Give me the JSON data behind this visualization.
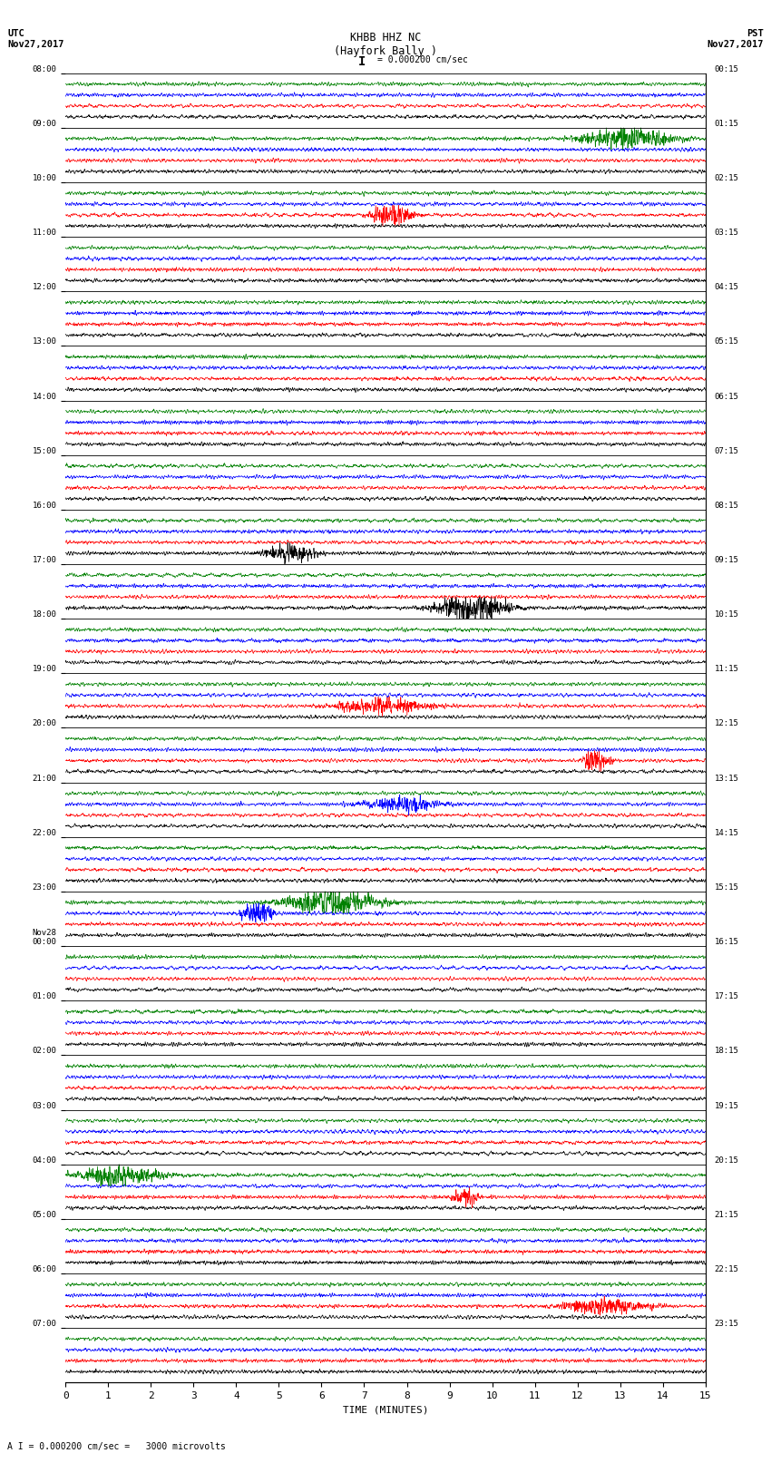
{
  "title_center": "KHBB HHZ NC\n(Hayfork Bally )",
  "title_left": "UTC\nNov27,2017",
  "title_right": "PST\nNov27,2017",
  "scale_text": "= 0.000200 cm/sec",
  "scale_bar": "I",
  "bottom_text": "A I = 0.000200 cm/sec =   3000 microvolts",
  "xlabel": "TIME (MINUTES)",
  "xticks": [
    0,
    1,
    2,
    3,
    4,
    5,
    6,
    7,
    8,
    9,
    10,
    11,
    12,
    13,
    14,
    15
  ],
  "left_labels": [
    "08:00",
    "09:00",
    "10:00",
    "11:00",
    "12:00",
    "13:00",
    "14:00",
    "15:00",
    "16:00",
    "17:00",
    "18:00",
    "19:00",
    "20:00",
    "21:00",
    "22:00",
    "23:00",
    "Nov28\n00:00",
    "01:00",
    "02:00",
    "03:00",
    "04:00",
    "05:00",
    "06:00",
    "07:00"
  ],
  "right_labels": [
    "00:15",
    "01:15",
    "02:15",
    "03:15",
    "04:15",
    "05:15",
    "06:15",
    "07:15",
    "08:15",
    "09:15",
    "10:15",
    "11:15",
    "12:15",
    "13:15",
    "14:15",
    "15:15",
    "16:15",
    "17:15",
    "18:15",
    "19:15",
    "20:15",
    "21:15",
    "22:15",
    "23:15"
  ],
  "n_rows": 24,
  "n_traces_per_row": 4,
  "trace_colors": [
    "black",
    "red",
    "blue",
    "green"
  ],
  "bg_color": "white",
  "noise_seed": 42,
  "fig_width": 8.5,
  "fig_height": 16.13,
  "dpi": 100
}
